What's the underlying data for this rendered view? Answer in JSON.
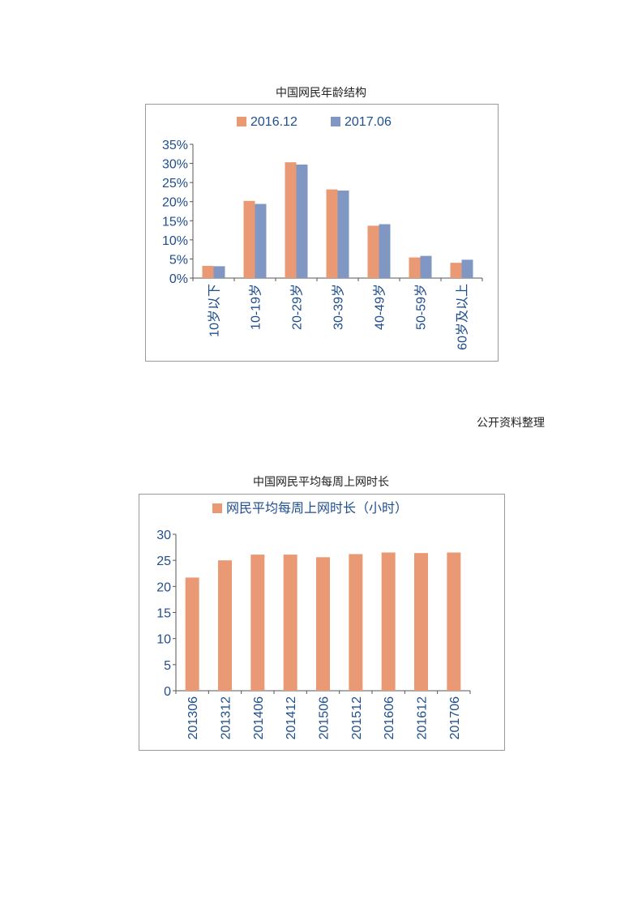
{
  "captions": {
    "chart1_title": "中国网民年龄结构",
    "source_note": "公开资料整理",
    "chart2_title": "中国网民平均每周上网时长"
  },
  "colors": {
    "series_orange": "#E99A74",
    "series_blue": "#7F97C2",
    "axis_text": "#1F4E8C",
    "frame": "#9A9A9A"
  },
  "chart_data": [
    {
      "type": "bar",
      "title": "中国网民年龄结构",
      "categories": [
        "10岁以下",
        "10-19岁",
        "20-29岁",
        "30-39岁",
        "40-49岁",
        "50-59岁",
        "60岁及以上"
      ],
      "series": [
        {
          "name": "2016.12",
          "values": [
            3.2,
            20.2,
            30.3,
            23.2,
            13.7,
            5.4,
            4.0
          ]
        },
        {
          "name": "2017.06",
          "values": [
            3.1,
            19.4,
            29.7,
            22.9,
            14.1,
            5.8,
            4.8
          ]
        }
      ],
      "yticks": [
        "0%",
        "5%",
        "10%",
        "15%",
        "20%",
        "25%",
        "30%",
        "35%"
      ],
      "ylim": [
        0,
        35
      ],
      "legend": "top-center",
      "grid": false
    },
    {
      "type": "bar",
      "title": "中国网民平均每周上网时长",
      "categories": [
        "201306",
        "201312",
        "201406",
        "201412",
        "201506",
        "201512",
        "201606",
        "201612",
        "201706"
      ],
      "series": [
        {
          "name": "网民平均每周上网时长（小时）",
          "values": [
            21.7,
            25.0,
            26.1,
            26.1,
            25.6,
            26.2,
            26.5,
            26.4,
            26.5
          ]
        }
      ],
      "yticks": [
        "0",
        "5",
        "10",
        "15",
        "20",
        "25",
        "30"
      ],
      "ylim": [
        0,
        30
      ],
      "legend": "top-center",
      "grid": false
    }
  ]
}
